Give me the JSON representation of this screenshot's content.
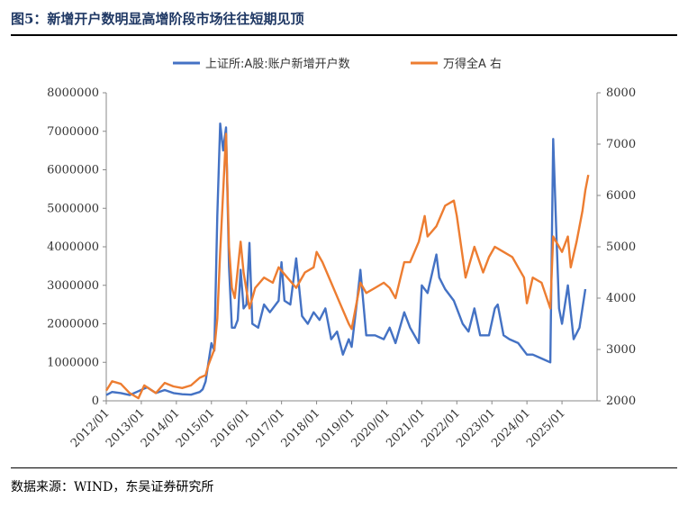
{
  "title": "图5：新增开户数明显高增阶段市场往往短期见顶",
  "source": "数据来源：WIND，东吴证券研究所",
  "colors": {
    "series_left": "#4472c4",
    "series_right": "#ed7d31"
  },
  "chart_data": {
    "type": "line",
    "legend_position": "top-center",
    "grid": false,
    "x_ticks": [
      "2012/01",
      "2013/01",
      "2014/01",
      "2015/01",
      "2016/01",
      "2017/01",
      "2018/01",
      "2019/01",
      "2020/01",
      "2021/01",
      "2022/01",
      "2023/01",
      "2024/01",
      "2025/01"
    ],
    "x_range": [
      "2012/01",
      "2025/12"
    ],
    "y_left": {
      "range": [
        0,
        8000000
      ],
      "ticks": [
        "0",
        "1000000",
        "2000000",
        "3000000",
        "4000000",
        "5000000",
        "6000000",
        "7000000",
        "8000000"
      ]
    },
    "y_right": {
      "range": [
        2000,
        8000
      ],
      "ticks": [
        "2000",
        "3000",
        "4000",
        "5000",
        "6000",
        "7000",
        "8000"
      ]
    },
    "series": [
      {
        "name": "上证所:A股:账户新增开户数",
        "axis": "left",
        "points": [
          [
            "2012/01",
            150000
          ],
          [
            "2012/03",
            230000
          ],
          [
            "2012/06",
            200000
          ],
          [
            "2012/09",
            150000
          ],
          [
            "2012/12",
            250000
          ],
          [
            "2013/03",
            350000
          ],
          [
            "2013/06",
            200000
          ],
          [
            "2013/09",
            280000
          ],
          [
            "2013/12",
            200000
          ],
          [
            "2014/03",
            170000
          ],
          [
            "2014/06",
            160000
          ],
          [
            "2014/09",
            230000
          ],
          [
            "2014/10",
            300000
          ],
          [
            "2014/11",
            500000
          ],
          [
            "2014/12",
            1000000
          ],
          [
            "2015/01",
            1500000
          ],
          [
            "2015/02",
            1300000
          ],
          [
            "2015/03",
            4800000
          ],
          [
            "2015/04",
            7200000
          ],
          [
            "2015/05",
            6500000
          ],
          [
            "2015/06",
            7100000
          ],
          [
            "2015/07",
            3500000
          ],
          [
            "2015/08",
            1900000
          ],
          [
            "2015/09",
            1900000
          ],
          [
            "2015/10",
            2100000
          ],
          [
            "2015/11",
            3400000
          ],
          [
            "2015/12",
            2400000
          ],
          [
            "2016/01",
            2500000
          ],
          [
            "2016/02",
            4100000
          ],
          [
            "2016/03",
            2000000
          ],
          [
            "2016/05",
            1900000
          ],
          [
            "2016/07",
            2500000
          ],
          [
            "2016/09",
            2300000
          ],
          [
            "2016/12",
            2600000
          ],
          [
            "2017/01",
            3600000
          ],
          [
            "2017/02",
            2600000
          ],
          [
            "2017/04",
            2500000
          ],
          [
            "2017/06",
            3700000
          ],
          [
            "2017/08",
            2200000
          ],
          [
            "2017/10",
            2000000
          ],
          [
            "2017/12",
            2300000
          ],
          [
            "2018/02",
            2100000
          ],
          [
            "2018/04",
            2400000
          ],
          [
            "2018/06",
            1600000
          ],
          [
            "2018/08",
            1800000
          ],
          [
            "2018/10",
            1200000
          ],
          [
            "2018/12",
            1600000
          ],
          [
            "2019/01",
            1400000
          ],
          [
            "2019/03",
            2700000
          ],
          [
            "2019/04",
            3400000
          ],
          [
            "2019/06",
            1700000
          ],
          [
            "2019/09",
            1700000
          ],
          [
            "2019/12",
            1600000
          ],
          [
            "2020/02",
            1900000
          ],
          [
            "2020/04",
            1500000
          ],
          [
            "2020/07",
            2300000
          ],
          [
            "2020/09",
            1900000
          ],
          [
            "2020/12",
            1500000
          ],
          [
            "2021/01",
            3000000
          ],
          [
            "2021/03",
            2800000
          ],
          [
            "2021/06",
            3800000
          ],
          [
            "2021/07",
            3200000
          ],
          [
            "2021/09",
            2900000
          ],
          [
            "2021/12",
            2600000
          ],
          [
            "2022/01",
            2400000
          ],
          [
            "2022/03",
            2000000
          ],
          [
            "2022/05",
            1800000
          ],
          [
            "2022/07",
            2400000
          ],
          [
            "2022/09",
            1700000
          ],
          [
            "2022/12",
            1700000
          ],
          [
            "2023/02",
            2400000
          ],
          [
            "2023/03",
            2500000
          ],
          [
            "2023/05",
            1700000
          ],
          [
            "2023/07",
            1600000
          ],
          [
            "2023/10",
            1500000
          ],
          [
            "2024/01",
            1200000
          ],
          [
            "2024/03",
            1200000
          ],
          [
            "2024/06",
            1100000
          ],
          [
            "2024/09",
            1000000
          ],
          [
            "2024/10",
            6800000
          ],
          [
            "2024/11",
            4500000
          ],
          [
            "2024/12",
            2400000
          ],
          [
            "2025/01",
            2000000
          ],
          [
            "2025/03",
            3000000
          ],
          [
            "2025/05",
            1600000
          ],
          [
            "2025/07",
            1900000
          ],
          [
            "2025/09",
            2900000
          ]
        ]
      },
      {
        "name": "万得全A 右",
        "axis": "right",
        "points": [
          [
            "2012/01",
            2200
          ],
          [
            "2012/03",
            2380
          ],
          [
            "2012/06",
            2330
          ],
          [
            "2012/09",
            2150
          ],
          [
            "2012/12",
            2050
          ],
          [
            "2013/02",
            2300
          ],
          [
            "2013/06",
            2150
          ],
          [
            "2013/09",
            2350
          ],
          [
            "2013/12",
            2280
          ],
          [
            "2014/03",
            2250
          ],
          [
            "2014/06",
            2300
          ],
          [
            "2014/09",
            2450
          ],
          [
            "2014/11",
            2500
          ],
          [
            "2014/12",
            2700
          ],
          [
            "2015/02",
            3000
          ],
          [
            "2015/03",
            3600
          ],
          [
            "2015/04",
            4900
          ],
          [
            "2015/06",
            7200
          ],
          [
            "2015/07",
            5000
          ],
          [
            "2015/08",
            4200
          ],
          [
            "2015/09",
            4000
          ],
          [
            "2015/11",
            5100
          ],
          [
            "2015/12",
            4500
          ],
          [
            "2016/02",
            3800
          ],
          [
            "2016/04",
            4200
          ],
          [
            "2016/07",
            4400
          ],
          [
            "2016/10",
            4300
          ],
          [
            "2016/12",
            4600
          ],
          [
            "2017/03",
            4400
          ],
          [
            "2017/06",
            4200
          ],
          [
            "2017/09",
            4500
          ],
          [
            "2017/12",
            4600
          ],
          [
            "2018/01",
            4900
          ],
          [
            "2018/03",
            4700
          ],
          [
            "2018/06",
            4300
          ],
          [
            "2018/09",
            3900
          ],
          [
            "2018/12",
            3500
          ],
          [
            "2019/01",
            3400
          ],
          [
            "2019/04",
            4300
          ],
          [
            "2019/06",
            4100
          ],
          [
            "2019/09",
            4200
          ],
          [
            "2019/12",
            4300
          ],
          [
            "2020/02",
            4200
          ],
          [
            "2020/04",
            4000
          ],
          [
            "2020/07",
            4700
          ],
          [
            "2020/09",
            4700
          ],
          [
            "2020/12",
            5100
          ],
          [
            "2021/02",
            5600
          ],
          [
            "2021/03",
            5200
          ],
          [
            "2021/06",
            5400
          ],
          [
            "2021/09",
            5800
          ],
          [
            "2021/12",
            5900
          ],
          [
            "2022/01",
            5600
          ],
          [
            "2022/04",
            4400
          ],
          [
            "2022/07",
            5000
          ],
          [
            "2022/10",
            4500
          ],
          [
            "2022/12",
            4800
          ],
          [
            "2023/02",
            5000
          ],
          [
            "2023/05",
            4900
          ],
          [
            "2023/08",
            4800
          ],
          [
            "2023/10",
            4600
          ],
          [
            "2023/12",
            4400
          ],
          [
            "2024/01",
            3900
          ],
          [
            "2024/03",
            4400
          ],
          [
            "2024/06",
            4300
          ],
          [
            "2024/09",
            3800
          ],
          [
            "2024/10",
            5200
          ],
          [
            "2024/12",
            5000
          ],
          [
            "2025/01",
            4900
          ],
          [
            "2025/03",
            5200
          ],
          [
            "2025/04",
            4600
          ],
          [
            "2025/06",
            5100
          ],
          [
            "2025/08",
            5700
          ],
          [
            "2025/09",
            6100
          ],
          [
            "2025/10",
            6400
          ]
        ]
      }
    ]
  }
}
